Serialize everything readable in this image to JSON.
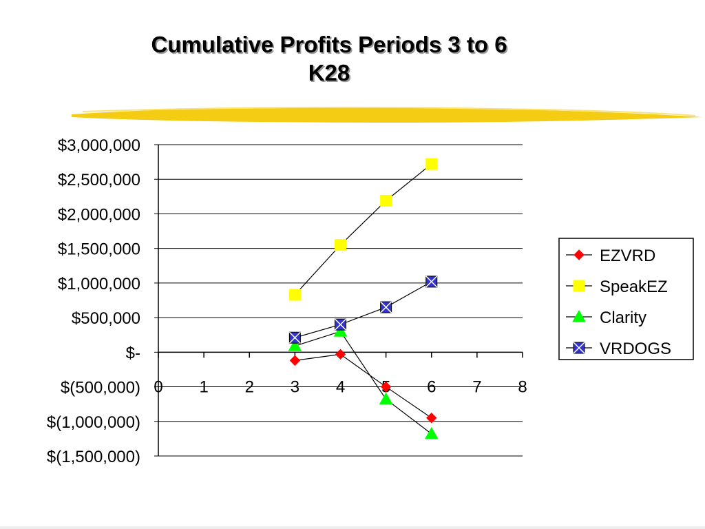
{
  "slide": {
    "title_line1": "Cumulative Profits Periods 3 to 6",
    "title_line2": "K28"
  },
  "colors": {
    "brush": "#f4cc14",
    "ezvrd": "#ff0000",
    "speakez": "#ffff00",
    "clarity": "#00ff00",
    "vrdogs": "#3333cc",
    "line": "#000000"
  },
  "chart_data": {
    "type": "scatter",
    "title": "",
    "xlabel": "",
    "ylabel": "",
    "xlim": [
      0,
      8
    ],
    "ylim": [
      -1500000,
      3000000
    ],
    "x_ticks": [
      0,
      1,
      2,
      3,
      4,
      5,
      6,
      7,
      8
    ],
    "y_ticks": [
      3000000,
      2500000,
      2000000,
      1500000,
      1000000,
      500000,
      0,
      -500000,
      -1000000,
      -1500000
    ],
    "y_tick_labels": [
      "$3,000,000",
      "$2,500,000",
      "$2,000,000",
      "$1,500,000",
      "$1,000,000",
      "$500,000",
      "$-",
      "$(500,000)",
      "$(1,000,000)",
      "$(1,500,000)"
    ],
    "grid": "horizontal",
    "legend_position": "right",
    "series": [
      {
        "name": "EZVRD",
        "marker": "diamond",
        "color": "#ff0000",
        "x": [
          3,
          4,
          5,
          6
        ],
        "y": [
          -120000,
          -30000,
          -500000,
          -950000
        ]
      },
      {
        "name": "SpeakEZ",
        "marker": "square",
        "color": "#ffff00",
        "x": [
          3,
          4,
          5,
          6
        ],
        "y": [
          830000,
          1550000,
          2190000,
          2720000
        ]
      },
      {
        "name": "Clarity",
        "marker": "triangle",
        "color": "#00ff00",
        "x": [
          3,
          4,
          5,
          6
        ],
        "y": [
          90000,
          300000,
          -680000,
          -1180000
        ]
      },
      {
        "name": "VRDOGS",
        "marker": "xsquare",
        "color": "#3333cc",
        "x": [
          3,
          4,
          5,
          6
        ],
        "y": [
          210000,
          400000,
          650000,
          1020000
        ]
      }
    ]
  }
}
